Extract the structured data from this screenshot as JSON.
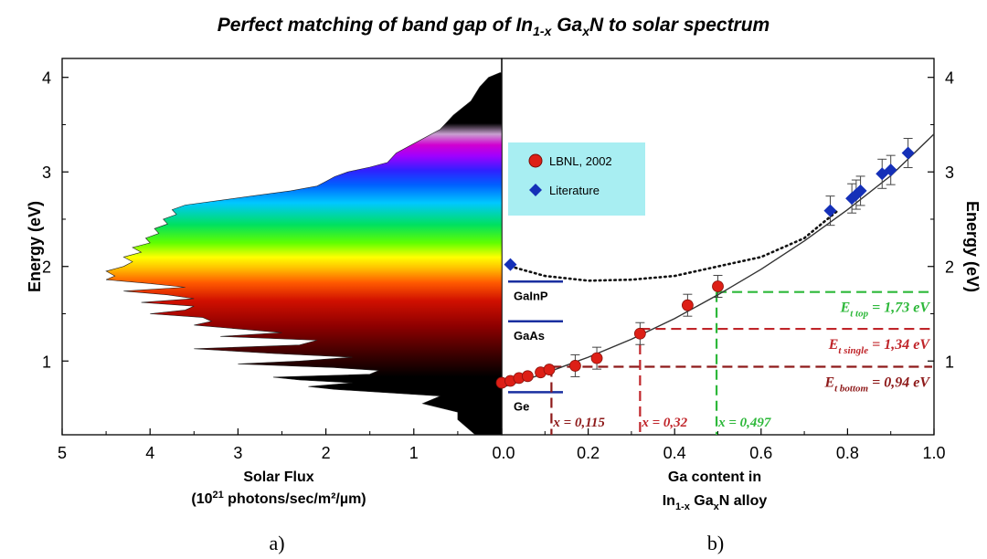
{
  "title": {
    "prefix": "Perfect matching of band gap of In",
    "sub1": "1-x",
    "mid": " Ga",
    "sub2": "x",
    "suffix": "N to solar spectrum"
  },
  "panel_labels": [
    "a)",
    "b)"
  ],
  "left_axis": {
    "ylabel": "Energy (eV)",
    "xlabel_line1": "Solar Flux",
    "xlabel_line2_pre": "(10",
    "xlabel_line2_sup": "21",
    "xlabel_line2_post": " photons/sec/m²/µm)"
  },
  "right_axis": {
    "ylabel": "Energy (eV)",
    "xlabel_line1": "Ga content  in",
    "xlabel_line2_pre": "In",
    "xlabel_line2_sub1": "1-x",
    "xlabel_line2_mid": " Ga",
    "xlabel_line2_sub2": "x",
    "xlabel_line2_post": "N alloy"
  },
  "legend": [
    {
      "label": "LBNL, 2002",
      "marker": "circle",
      "color": "#dd1f16"
    },
    {
      "label": "Literature",
      "marker": "diamond",
      "color": "#1530b8"
    }
  ],
  "materials": [
    {
      "name": "GaInP",
      "energy": 1.84
    },
    {
      "name": "GaAs",
      "energy": 1.42
    },
    {
      "name": "Ge",
      "energy": 0.67
    }
  ],
  "annotations": {
    "top": {
      "main": "E",
      "sub": "t top",
      "rest": " = 1,73 eV",
      "energy": 1.73,
      "x": 0.497,
      "color": "#2db83a"
    },
    "single": {
      "main": "E",
      "sub": "t single",
      "rest": " = 1,34 eV",
      "energy": 1.34,
      "x": 0.32,
      "color": "#c0252a"
    },
    "bottom": {
      "main": "E",
      "sub": "t bottom",
      "rest": " = 0,94 eV",
      "energy": 0.94,
      "x": 0.115,
      "color": "#8e1a1a"
    },
    "x_labels": [
      {
        "text": "x = 0,115",
        "color": "#8e1a1a"
      },
      {
        "text": "x = 0,32",
        "color": "#c0252a"
      },
      {
        "text": "x = 0,497",
        "color": "#2db83a"
      }
    ]
  },
  "chart_data": [
    {
      "type": "area",
      "orientation": "horizontal",
      "xlabel": "Solar Flux (10^21 photons/sec/m²/µm)",
      "ylabel": "Energy (eV)",
      "xlim": [
        5,
        0
      ],
      "ylim": [
        0.22,
        4.2
      ],
      "x_ticks": [
        "5",
        "4",
        "3",
        "2",
        "1",
        "0.0"
      ],
      "y_ticks": [
        "1",
        "2",
        "3",
        "4"
      ],
      "points": [
        [
          0.22,
          0.3
        ],
        [
          0.3,
          0.4
        ],
        [
          0.38,
          0.5
        ],
        [
          0.46,
          0.5
        ],
        [
          0.55,
          0.9
        ],
        [
          0.63,
          0.7
        ],
        [
          0.7,
          1.9
        ],
        [
          0.73,
          2.2
        ],
        [
          0.77,
          1.7
        ],
        [
          0.8,
          2.3
        ],
        [
          0.83,
          2.6
        ],
        [
          0.86,
          1.5
        ],
        [
          0.9,
          1.4
        ],
        [
          0.93,
          1.9
        ],
        [
          0.97,
          3.0
        ],
        [
          1.0,
          2.3
        ],
        [
          1.04,
          1.7
        ],
        [
          1.08,
          2.6
        ],
        [
          1.13,
          3.5
        ],
        [
          1.17,
          2.3
        ],
        [
          1.22,
          2.1
        ],
        [
          1.26,
          3.2
        ],
        [
          1.3,
          2.5
        ],
        [
          1.34,
          3.0
        ],
        [
          1.38,
          3.5
        ],
        [
          1.42,
          3.3
        ],
        [
          1.46,
          3.4
        ],
        [
          1.5,
          4.0
        ],
        [
          1.54,
          3.6
        ],
        [
          1.58,
          3.5
        ],
        [
          1.62,
          4.1
        ],
        [
          1.66,
          3.5
        ],
        [
          1.7,
          3.8
        ],
        [
          1.74,
          4.3
        ],
        [
          1.78,
          3.6
        ],
        [
          1.82,
          4.0
        ],
        [
          1.86,
          4.5
        ],
        [
          1.9,
          4.4
        ],
        [
          1.95,
          4.5
        ],
        [
          2.0,
          4.3
        ],
        [
          2.05,
          4.2
        ],
        [
          2.1,
          4.3
        ],
        [
          2.15,
          4.1
        ],
        [
          2.2,
          4.2
        ],
        [
          2.25,
          4.0
        ],
        [
          2.3,
          4.05
        ],
        [
          2.35,
          3.9
        ],
        [
          2.4,
          3.95
        ],
        [
          2.45,
          3.8
        ],
        [
          2.5,
          3.85
        ],
        [
          2.55,
          3.7
        ],
        [
          2.6,
          3.75
        ],
        [
          2.65,
          3.6
        ],
        [
          2.7,
          3.2
        ],
        [
          2.75,
          2.8
        ],
        [
          2.8,
          2.4
        ],
        [
          2.85,
          2.1
        ],
        [
          2.9,
          2.0
        ],
        [
          2.95,
          1.9
        ],
        [
          3.0,
          1.75
        ],
        [
          3.05,
          1.5
        ],
        [
          3.1,
          1.3
        ],
        [
          3.2,
          1.2
        ],
        [
          3.3,
          1.0
        ],
        [
          3.45,
          0.7
        ],
        [
          3.6,
          0.55
        ],
        [
          3.75,
          0.35
        ],
        [
          3.9,
          0.25
        ],
        [
          4.0,
          0.15
        ],
        [
          4.05,
          0.02
        ]
      ]
    },
    {
      "type": "scatter",
      "xlabel": "Ga content in In1-x GaxN alloy",
      "ylabel": "Energy (eV)",
      "xlim": [
        0,
        1
      ],
      "ylim": [
        0.22,
        4.2
      ],
      "x_ticks": [
        "0.0",
        "0.2",
        "0.4",
        "0.6",
        "0.8",
        "1.0"
      ],
      "y_ticks": [
        "1",
        "2",
        "3",
        "4"
      ],
      "series": [
        {
          "name": "LBNL, 2002",
          "marker": "circle",
          "points": [
            [
              0.0,
              0.77
            ],
            [
              0.02,
              0.79
            ],
            [
              0.04,
              0.82
            ],
            [
              0.06,
              0.84
            ],
            [
              0.09,
              0.88
            ],
            [
              0.11,
              0.91
            ],
            [
              0.17,
              0.95
            ],
            [
              0.22,
              1.03
            ],
            [
              0.32,
              1.29
            ],
            [
              0.43,
              1.59
            ],
            [
              0.5,
              1.79
            ]
          ]
        },
        {
          "name": "Literature",
          "marker": "diamond",
          "points": [
            [
              0.02,
              2.02
            ],
            [
              0.76,
              2.59
            ],
            [
              0.81,
              2.72
            ],
            [
              0.82,
              2.76
            ],
            [
              0.83,
              2.8
            ],
            [
              0.88,
              2.98
            ],
            [
              0.9,
              3.02
            ],
            [
              0.94,
              3.2
            ]
          ]
        }
      ],
      "fit_curve": [
        [
          0.0,
          0.72
        ],
        [
          0.1,
          0.87
        ],
        [
          0.2,
          1.04
        ],
        [
          0.3,
          1.23
        ],
        [
          0.4,
          1.45
        ],
        [
          0.5,
          1.7
        ],
        [
          0.6,
          1.97
        ],
        [
          0.7,
          2.27
        ],
        [
          0.8,
          2.6
        ],
        [
          0.9,
          2.96
        ],
        [
          1.0,
          3.4
        ]
      ],
      "bowing_curve": [
        [
          0.02,
          2.0
        ],
        [
          0.1,
          1.9
        ],
        [
          0.2,
          1.85
        ],
        [
          0.3,
          1.86
        ],
        [
          0.4,
          1.9
        ],
        [
          0.5,
          2.0
        ],
        [
          0.6,
          2.1
        ],
        [
          0.7,
          2.3
        ],
        [
          0.78,
          2.6
        ]
      ]
    }
  ]
}
